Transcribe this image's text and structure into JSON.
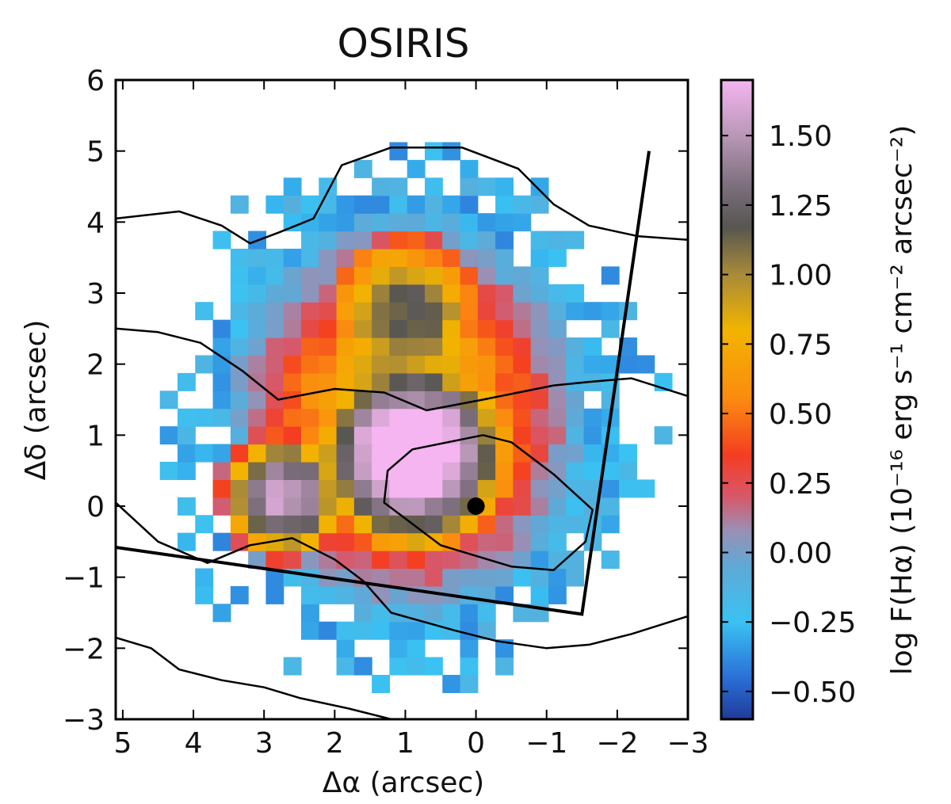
{
  "chart_data": {
    "type": "heatmap",
    "title": "OSIRIS",
    "xlabel": "Δα (arcsec)",
    "ylabel": "Δδ (arcsec)",
    "xlim": [
      5.1,
      -3.0
    ],
    "ylim": [
      -3.0,
      6.0
    ],
    "xticks": [
      5,
      4,
      3,
      2,
      1,
      0,
      -1,
      -2,
      -3
    ],
    "xtick_labels": [
      "5",
      "4",
      "3",
      "2",
      "1",
      "0",
      "−1",
      "−2",
      "−3"
    ],
    "yticks": [
      6,
      5,
      4,
      3,
      2,
      1,
      0,
      -1,
      -2,
      -3
    ],
    "ytick_labels": [
      "6",
      "5",
      "4",
      "3",
      "2",
      "1",
      "0",
      "−1",
      "−2",
      "−3"
    ],
    "colorbar": {
      "label": "log F(Hα) (10⁻¹⁶ erg s⁻¹ cm⁻² arcsec⁻²)",
      "range": [
        -0.6,
        1.7
      ],
      "ticks": [
        1.5,
        1.25,
        1.0,
        0.75,
        0.5,
        0.25,
        0.0,
        -0.25,
        -0.5
      ],
      "tick_labels": [
        "1.50",
        "1.25",
        "1.00",
        "0.75",
        "0.50",
        "0.25",
        "0.00",
        "−0.25",
        "−0.50"
      ]
    },
    "colormap_stops": [
      {
        "value": -0.6,
        "color": "#1f3b9a"
      },
      {
        "value": -0.45,
        "color": "#2b6fd6"
      },
      {
        "value": -0.25,
        "color": "#3ac2f2"
      },
      {
        "value": -0.05,
        "color": "#5fa9d6"
      },
      {
        "value": 0.08,
        "color": "#9a8fb4"
      },
      {
        "value": 0.2,
        "color": "#d7586a"
      },
      {
        "value": 0.35,
        "color": "#f43d22"
      },
      {
        "value": 0.55,
        "color": "#fb8a10"
      },
      {
        "value": 0.8,
        "color": "#f2b400"
      },
      {
        "value": 1.0,
        "color": "#a98a38"
      },
      {
        "value": 1.17,
        "color": "#575650"
      },
      {
        "value": 1.32,
        "color": "#7d6f7d"
      },
      {
        "value": 1.5,
        "color": "#b897b6"
      },
      {
        "value": 1.7,
        "color": "#f5b5f1"
      }
    ],
    "pixel_grid": {
      "cell_size_arcsec": 0.25,
      "center_alpha_range": [
        5.1,
        -3.0
      ],
      "center_delta_range": [
        -3.0,
        6.0
      ]
    },
    "hotspots": [
      {
        "alpha": 0.9,
        "delta": 0.75,
        "peak": 1.95,
        "width": 1.1
      },
      {
        "alpha": 2.7,
        "delta": 0.15,
        "peak": 1.6,
        "width": 0.75
      },
      {
        "alpha": 1.0,
        "delta": 2.7,
        "peak": 1.2,
        "width": 1.1
      }
    ],
    "nucleus_marker": {
      "alpha": 0.0,
      "delta": 0.0,
      "label": "nucleus"
    },
    "slit_outline": [
      [
        5.1,
        -0.58
      ],
      [
        -1.5,
        -1.52
      ],
      [
        -2.45,
        5.0
      ]
    ],
    "contours": [
      {
        "name": "contour-top",
        "points": [
          [
            5.1,
            4.05
          ],
          [
            4.2,
            4.15
          ],
          [
            3.6,
            3.95
          ],
          [
            3.2,
            3.7
          ],
          [
            2.8,
            3.85
          ],
          [
            2.3,
            4.05
          ],
          [
            1.9,
            4.8
          ],
          [
            1.2,
            5.05
          ],
          [
            0.2,
            5.05
          ],
          [
            -0.6,
            4.75
          ],
          [
            -1.1,
            4.25
          ],
          [
            -1.6,
            3.95
          ],
          [
            -2.3,
            3.8
          ],
          [
            -3.0,
            3.75
          ]
        ]
      },
      {
        "name": "contour-upper",
        "points": [
          [
            5.1,
            2.5
          ],
          [
            4.5,
            2.45
          ],
          [
            3.9,
            2.3
          ],
          [
            3.3,
            1.9
          ],
          [
            2.8,
            1.5
          ],
          [
            2.0,
            1.65
          ],
          [
            1.3,
            1.6
          ],
          [
            0.7,
            1.35
          ],
          [
            -0.1,
            1.5
          ],
          [
            -0.6,
            1.6
          ],
          [
            -1.1,
            1.7
          ],
          [
            -1.6,
            1.75
          ],
          [
            -2.2,
            1.8
          ],
          [
            -3.0,
            1.55
          ]
        ]
      },
      {
        "name": "contour-core",
        "points": [
          [
            -0.1,
            1.0
          ],
          [
            0.9,
            0.8
          ],
          [
            1.25,
            0.5
          ],
          [
            1.3,
            0.05
          ],
          [
            0.5,
            -0.55
          ],
          [
            -0.5,
            -0.85
          ],
          [
            -1.1,
            -0.9
          ],
          [
            -1.55,
            -0.5
          ],
          [
            -1.65,
            -0.05
          ],
          [
            -1.1,
            0.45
          ],
          [
            -0.5,
            0.9
          ],
          [
            -0.1,
            1.0
          ]
        ]
      },
      {
        "name": "contour-lower-left",
        "points": [
          [
            5.1,
            0.05
          ],
          [
            4.5,
            -0.5
          ],
          [
            3.8,
            -0.8
          ],
          [
            3.2,
            -0.55
          ],
          [
            2.6,
            -0.45
          ],
          [
            2.0,
            -0.75
          ],
          [
            1.6,
            -1.05
          ],
          [
            1.2,
            -1.5
          ],
          [
            0.3,
            -1.75
          ],
          [
            -0.3,
            -1.9
          ],
          [
            -1.0,
            -2.0
          ],
          [
            -1.6,
            -1.95
          ],
          [
            -2.2,
            -1.8
          ],
          [
            -3.0,
            -1.55
          ]
        ]
      },
      {
        "name": "contour-bottom",
        "points": [
          [
            5.1,
            -1.85
          ],
          [
            4.6,
            -2.0
          ],
          [
            4.2,
            -2.3
          ],
          [
            3.6,
            -2.45
          ],
          [
            3.0,
            -2.55
          ],
          [
            2.5,
            -2.7
          ],
          [
            1.8,
            -2.85
          ],
          [
            1.2,
            -3.0
          ]
        ]
      }
    ]
  }
}
